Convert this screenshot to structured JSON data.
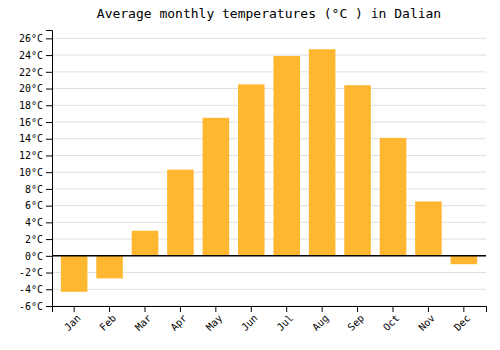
{
  "chart_data": {
    "type": "bar",
    "title": "Average monthly temperatures (°C ) in Dalian",
    "categories": [
      "Jan",
      "Feb",
      "Mar",
      "Apr",
      "May",
      "Jun",
      "Jul",
      "Aug",
      "Sep",
      "Oct",
      "Nov",
      "Dec"
    ],
    "values": [
      -4.3,
      -2.7,
      3.0,
      10.3,
      16.5,
      20.5,
      23.9,
      24.7,
      20.4,
      14.1,
      6.5,
      -1.0
    ],
    "color": "#FFB732",
    "ylim": [
      -6,
      27
    ],
    "yticks": [
      {
        "value": -6,
        "label": "-6°C"
      },
      {
        "value": -4,
        "label": "-4°C"
      },
      {
        "value": -2,
        "label": "-2°C"
      },
      {
        "value": 0,
        "label": "0°C"
      },
      {
        "value": 2,
        "label": "2°C"
      },
      {
        "value": 4,
        "label": "4°C"
      },
      {
        "value": 6,
        "label": "6°C"
      },
      {
        "value": 8,
        "label": "8°C"
      },
      {
        "value": 10,
        "label": "10°C"
      },
      {
        "value": 12,
        "label": "12°C"
      },
      {
        "value": 14,
        "label": "14°C"
      },
      {
        "value": 16,
        "label": "16°C"
      },
      {
        "value": 18,
        "label": "18°C"
      },
      {
        "value": 20,
        "label": "20°C"
      },
      {
        "value": 22,
        "label": "22°C"
      },
      {
        "value": 24,
        "label": "24°C"
      },
      {
        "value": 26,
        "label": "26°C"
      }
    ],
    "grid": true
  }
}
